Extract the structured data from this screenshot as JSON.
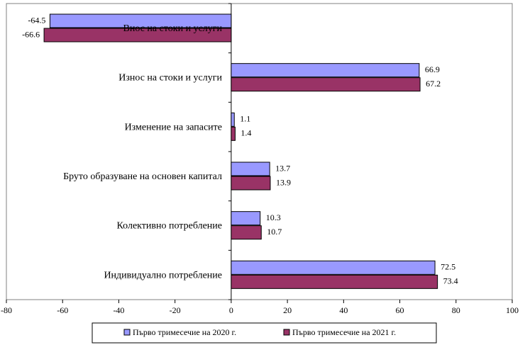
{
  "chart_data": {
    "type": "barh",
    "categories": [
      "Внос на стоки и услуги",
      "Износ на стоки и услуги",
      "Изменение на запасите",
      "Бруто образуване на основен капитал",
      "Колективно потребление",
      "Индивидуално потребление"
    ],
    "series": [
      {
        "name": "Първо тримесечие на 2020 г.",
        "color": "#9999ff",
        "values": [
          -64.5,
          66.9,
          1.1,
          13.7,
          10.3,
          72.5
        ]
      },
      {
        "name": "Първо тримесечие на 2021 г.",
        "color": "#993366",
        "values": [
          -66.6,
          67.2,
          1.4,
          13.9,
          10.7,
          73.4
        ]
      }
    ],
    "xlim": [
      -80,
      100
    ],
    "xticks": [
      -80,
      -60,
      -40,
      -20,
      0,
      20,
      40,
      60,
      80,
      100
    ],
    "legend": "bottom"
  }
}
